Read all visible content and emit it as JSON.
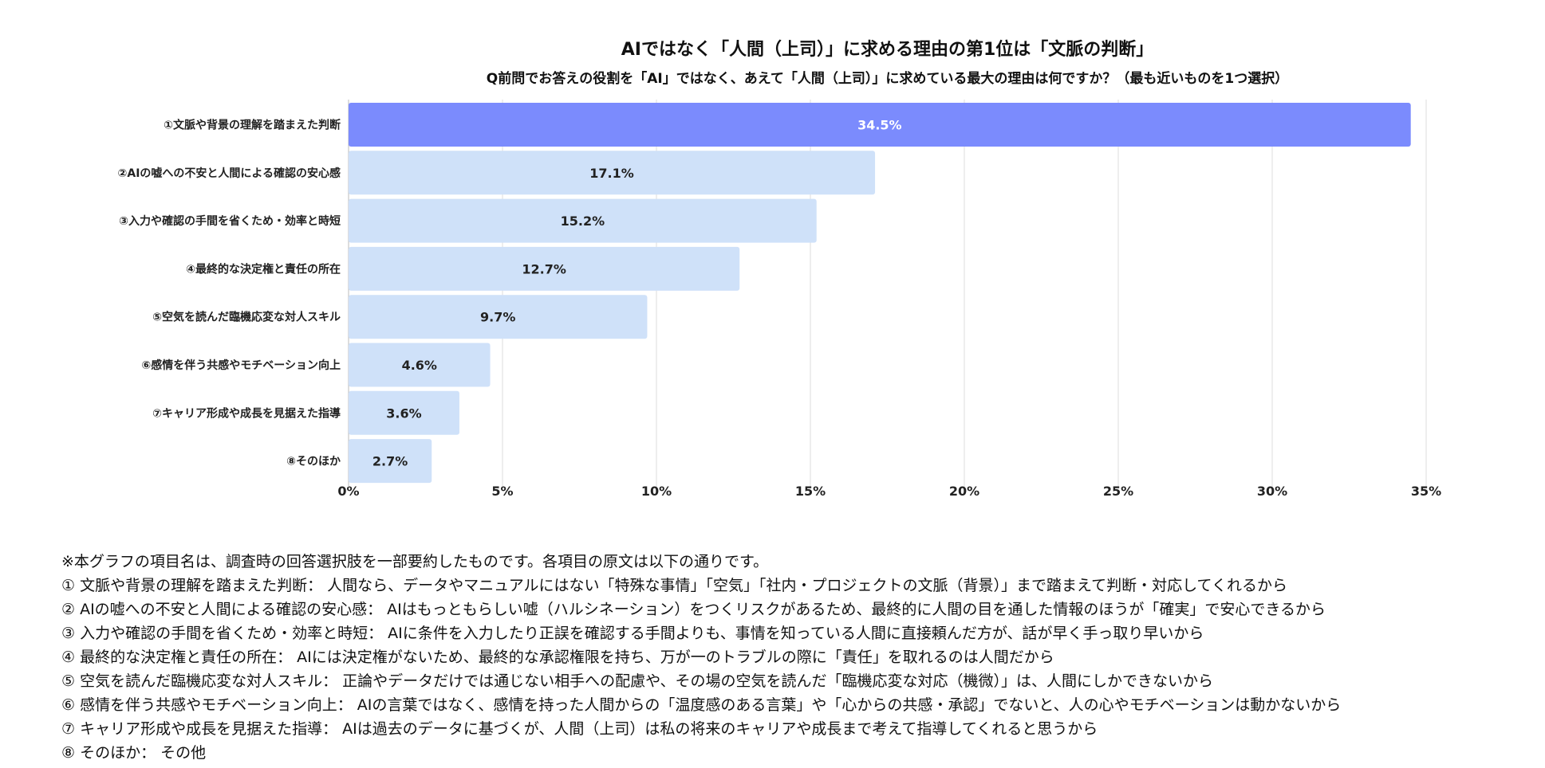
{
  "chart_data": {
    "type": "bar",
    "orientation": "horizontal",
    "title": "AIではなく「人間（上司）」に求める理由の第1位は「文脈の判断」",
    "subtitle": "Q前問でお答えの役割を「AI」ではなく、あえて「人間（上司）」に求めている最大の理由は何ですか？（最も近いものを1つ選択）",
    "categories": [
      "①文脈や背景の理解を踏まえた判断",
      "②AIの嘘への不安と人間による確認の安心感",
      "③入力や確認の手間を省くため・効率と時短",
      "④最終的な決定権と責任の所在",
      "⑤空気を読んだ臨機応変な対人スキル",
      "⑥感情を伴う共感やモチベーション向上",
      "⑦キャリア形成や成長を見据えた指導",
      "⑧そのほか"
    ],
    "values": [
      34.5,
      17.1,
      15.2,
      12.7,
      9.7,
      4.6,
      3.6,
      2.7
    ],
    "data_labels": [
      "34.5%",
      "17.1%",
      "15.2%",
      "12.7%",
      "9.7%",
      "4.6%",
      "3.6%",
      "2.7%"
    ],
    "xlim": [
      0,
      35
    ],
    "xticks": [
      "0%",
      "5%",
      "10%",
      "15%",
      "20%",
      "25%",
      "30%",
      "35%"
    ],
    "grid": "vertical",
    "colors": {
      "highlight": "#7b8bfd",
      "default": "#cfe1f9",
      "highlight_label": "#ffffff",
      "grid": "#dddddd"
    }
  },
  "notes": [
    "※本グラフの項目名は、調査時の回答選択肢を一部要約したものです。各項目の原文は以下の通りです。",
    "① 文脈や背景の理解を踏まえた判断： 人間なら、データやマニュアルにはない「特殊な事情」「空気」「社内・プロジェクトの文脈（背景）」まで踏まえて判断・対応してくれるから",
    "② AIの嘘への不安と人間による確認の安心感： AIはもっともらしい嘘（ハルシネーション）をつくリスクがあるため、最終的に人間の目を通した情報のほうが「確実」で安心できるから",
    "③ 入力や確認の手間を省くため・効率と時短： AIに条件を入力したり正誤を確認する手間よりも、事情を知っている人間に直接頼んだ方が、話が早く手っ取り早いから",
    "④ 最終的な決定権と責任の所在： AIには決定権がないため、最終的な承認権限を持ち、万が一のトラブルの際に「責任」を取れるのは人間だから",
    "⑤ 空気を読んだ臨機応変な対人スキル： 正論やデータだけでは通じない相手への配慮や、その場の空気を読んだ「臨機応変な対応（機微）」は、人間にしかできないから",
    "⑥ 感情を伴う共感やモチベーション向上： AIの言葉ではなく、感情を持った人間からの「温度感のある言葉」や「心からの共感・承認」でないと、人の心やモチベーションは動かないから",
    "⑦ キャリア形成や成長を見据えた指導： AIは過去のデータに基づくが、人間（上司）は私の将来のキャリアや成長まで考えて指導してくれると思うから",
    "⑧ そのほか： その他"
  ]
}
